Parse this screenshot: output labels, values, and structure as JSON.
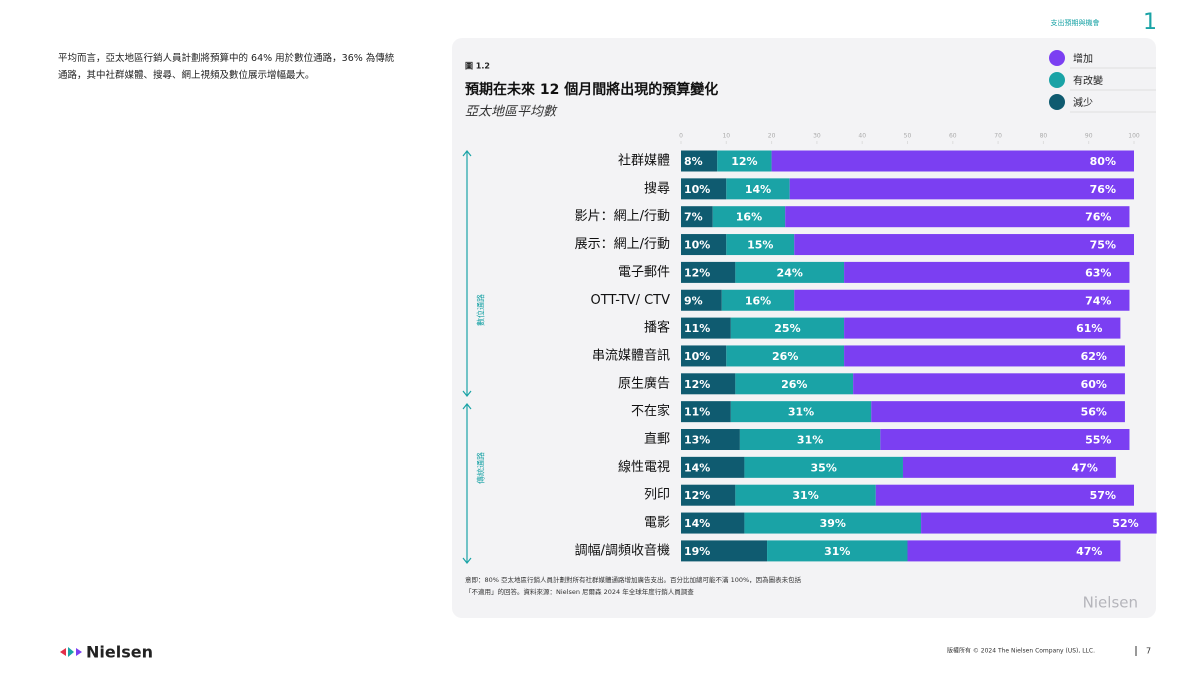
{
  "page": {
    "section": "支出預期與機會",
    "section_number": "1",
    "intro": "平均而言，亞太地區行銷人員計劃將預算中的 64% 用於數位通路，36% 為傳統通路，其中社群媒體、搜尋、網上視頻及數位展示增幅最大。",
    "logo": "Nielsen",
    "copyright": "版權所有 © 2024 The Nielsen Company (US), LLC.",
    "page_number": "7"
  },
  "chart_data": {
    "type": "stacked-bar",
    "orientation": "horizontal",
    "figure_label": "圖 1.2",
    "title": "預期在未來 12 個月間將出現的預算變化",
    "subtitle": "亞太地區平均數",
    "group_labels": [
      "數位通路",
      "傳統通路"
    ],
    "categories": [
      "社群媒體",
      "搜尋",
      "影片：網上/行動",
      "展示：網上/行動",
      "電子郵件",
      "OTT-TV/ CTV",
      "播客",
      "串流媒體音訊",
      "原生廣告",
      "不在家",
      "直郵",
      "線性電視",
      "列印",
      "電影",
      "調幅/調頻收音機"
    ],
    "series": [
      {
        "name": "減少",
        "color": "#0f5b70",
        "values": [
          8,
          10,
          7,
          10,
          12,
          9,
          11,
          10,
          12,
          11,
          13,
          14,
          12,
          14,
          19
        ],
        "value_labels": [
          "8%",
          "10%",
          "7%",
          "10%",
          "12%",
          "9%",
          "11%",
          "10%",
          "12%",
          "11%",
          "13%",
          "14%",
          "12%",
          "14%",
          "19%"
        ]
      },
      {
        "name": "有改變",
        "color": "#1aa3a6",
        "values": [
          12,
          14,
          16,
          15,
          24,
          16,
          25,
          26,
          26,
          31,
          31,
          35,
          31,
          39,
          31
        ],
        "value_labels": [
          "12%",
          "14%",
          "16%",
          "15%",
          "24%",
          "16%",
          "25%",
          "26%",
          "26%",
          "31%",
          "31%",
          "35%",
          "31%",
          "39%",
          "31%"
        ]
      },
      {
        "name": "增加",
        "color": "#7b3ff2",
        "values": [
          80,
          76,
          76,
          75,
          63,
          74,
          61,
          62,
          60,
          56,
          55,
          47,
          57,
          52,
          47
        ],
        "value_labels": [
          "80%",
          "76%",
          "76%",
          "75%",
          "63%",
          "74%",
          "61%",
          "62%",
          "60%",
          "56%",
          "55%",
          "47%",
          "57%",
          "52%",
          "47%"
        ]
      }
    ],
    "xlim": [
      0,
      100
    ],
    "xticks": [
      0,
      10,
      20,
      30,
      40,
      50,
      60,
      70,
      80,
      90,
      100
    ],
    "note": [
      "意即：80% 亞太地區行銷人員計劃對所有社群媒體通路增加廣告支出。百分比加總可能不滿 100%，因為圖表未包括",
      "「不適用」的回答。資料來源：Nielsen 尼爾森 2024 年全球年度行銷人員調查"
    ],
    "watermark": "Nielsen"
  }
}
